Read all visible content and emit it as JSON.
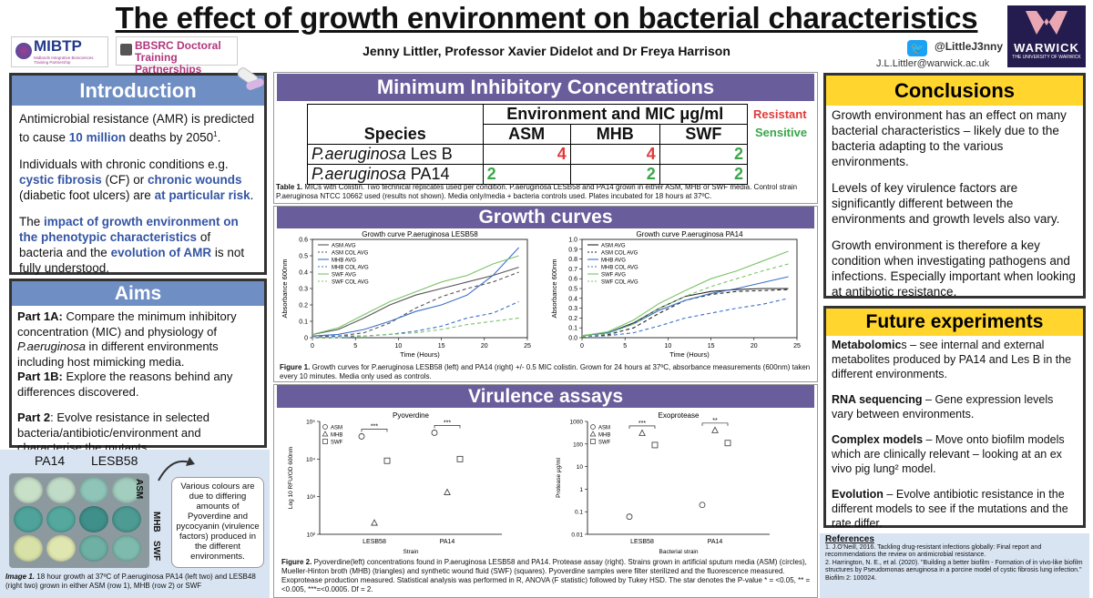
{
  "header": {
    "title": "The effect of growth environment on bacterial characteristics",
    "authors": "Jenny Littler, Professor Xavier Didelot and Dr Freya Harrison",
    "twitter": "@LittleJ3nny",
    "email": "J.L.Littler@warwick.ac.uk",
    "logo_mibtp": "MIBTP",
    "logo_mibtp_sub": "Midlands Integrative Biosciences Training Partnership",
    "logo_bbsrc": "BBSRC Doctoral Training Partnerships",
    "logo_warwick": "WARWICK",
    "logo_warwick_sub": "THE UNIVERSITY OF WARWICK"
  },
  "introduction": {
    "title": "Introduction",
    "p1a": "Antimicrobial resistance (AMR) is predicted to cause ",
    "p1b": "10 million",
    "p1c": " deaths by 2050",
    "p1sup": "1",
    "p1d": ".",
    "p2a": "Individuals with chronic conditions e.g. ",
    "p2b": "cystic fibrosis",
    "p2c": " (CF) or ",
    "p2d": "chronic wounds",
    "p2e": " (diabetic foot ulcers) are ",
    "p2f": "at particular risk",
    "p2g": ".",
    "p3a": "The ",
    "p3b": "impact of growth environment on the phenotypic characteristics",
    "p3c": " of bacteria and the ",
    "p3d": "evolution of AMR",
    "p3e": " is not fully understood."
  },
  "aims": {
    "title": "Aims",
    "p1a_label": "Part 1A:",
    "p1a_text": " Compare the minimum inhibitory concentration (MIC) and physiology of ",
    "p1a_italic": "P.aeruginosa",
    "p1a_rest": " in different environments including host mimicking media.",
    "p1b_label": "Part 1B:",
    "p1b_text": " Explore the reasons behind any differences discovered.",
    "p2_label": "Part 2",
    "p2_text": ": Evolve resistance in selected bacteria/antibiotic/environment and characterise the mutants."
  },
  "plate": {
    "label_pa14": "PA14",
    "label_lesb58": "LESB58",
    "rows": [
      "ASM",
      "MHB",
      "SWF"
    ],
    "note": "Various colours are due to differing amounts of Pyoverdine and pycocyanin (virulence factors) produced in the different environments.",
    "caption_label": "Image 1.",
    "caption": " 18 hour growth at 37ºC of P.aeruginosa PA14 (left two) and LESB48 (right two) grown in either ASM (row 1), MHB (row 2) or SWF",
    "colors": [
      "#c8e0c8",
      "#c0dcc8",
      "#8fc4b8",
      "#a2cdbf",
      "#4fa39a",
      "#55a89e",
      "#3f8f8a",
      "#4d9b93",
      "#d8e2a8",
      "#e0e6b0",
      "#6fb0a4",
      "#7fbaae"
    ]
  },
  "mic": {
    "title": "Minimum Inhibitory Concentrations",
    "header": "Environment and MIC μg/ml",
    "col_species": "Species",
    "cols": [
      "ASM",
      "MHB",
      "SWF"
    ],
    "rows": [
      {
        "species": "P.aeruginosa",
        "strain": " Les B",
        "values": [
          "4",
          "4",
          "2"
        ],
        "colors": [
          "#e23b3b",
          "#e23b3b",
          "#3aa64a"
        ]
      },
      {
        "species": "P.aeruginosa",
        "strain": " PA14",
        "values": [
          "2",
          "2",
          "2"
        ],
        "colors": [
          "#3aa64a",
          "#3aa64a",
          "#3aa64a"
        ]
      }
    ],
    "legend_resistant": "Resistant",
    "legend_sensitive": "Sensitive",
    "caption_label": "Table 1.",
    "caption": " MICs with Colistin. Two technical replicates used per condition. P.aeruginosa LESB58 and PA14 grown in either ASM, MHB or SWF media. Control strain P.aeruginosa NTCC 10662 used (results not shown). Media only/media + bacteria controls used. Plates incubated for 18 hours at 37ºC."
  },
  "growth": {
    "title": "Growth curves",
    "caption_label": "Figure 1.",
    "caption": " Growth curves for P.aeruginosa LESB58 (left) and PA14 (right) +/- 0.5 MIC colistin. Grown for 24 hours at 37ºC, absorbance measurements (600nm) taken every 10 minutes. Media only used as controls."
  },
  "virulence": {
    "title": "Virulence assays",
    "caption_label": "Figure 2.",
    "caption": " Pyoverdine(left) concentrations found in P.aeruginosa LESB58 and PA14. Protease assay (right). Strains grown in artificial sputum media (ASM) (circles), Mueller-Hinton broth (MHB) (triangles) and synthetic wound fluid (SWF) (squares). Pyoverdine samples were filter sterilized and the fluorescence measured. Exoprotease production measured. Statistical analysis was performed in R, ANOVA (F statistic) followed by Tukey HSD. The star denotes the P-value * = <0.05, ** = <0.005, ***=<0.0005. Df = 2."
  },
  "conclusions": {
    "title": "Conclusions",
    "p1": "Growth environment has an effect on many bacterial characteristics – likely due to the bacteria adapting to the various environments.",
    "p2": "Levels of key virulence factors are significantly different between the environments and growth levels also vary.",
    "p3": "Growth environment is therefore a key condition when investigating pathogens and infections. Especially important when looking at antibiotic resistance."
  },
  "future": {
    "title": "Future experiments",
    "items": [
      {
        "label": "Metabolomic",
        "rest": "s – see internal and external metabolites produced by PA14 and Les B in the different environments."
      },
      {
        "label": "RNA sequencing",
        "rest": " – Gene expression levels vary between environments."
      },
      {
        "label": "Complex models",
        "rest": " – Move onto biofilm models which are clinically relevant – looking at an ex vivo pig lung² model."
      },
      {
        "label": "Evolution",
        "rest": " – Evolve antibiotic resistance in the different models to see if the mutations and the rate differ."
      }
    ]
  },
  "references": {
    "title": "References",
    "r1": "1. J.O’Neill, 2016. Tackling drug-resistant infections globally: Final report and recommendations the review on antimicrobial resistance.",
    "r2": "2. Harrington, N. E., et al. (2020). \"Building a better biofilm - Formation of in vivo-like biofilm structures by Pseudomonas aeruginosa in a porcine model of cystic fibrosis lung infection.\" Biofilm 2: 100024."
  },
  "chart_data": [
    {
      "type": "line",
      "title": "Growth curve P.aeruginosa LESB58",
      "xlabel": "Time (Hours)",
      "ylabel": "Absorbance 600nm",
      "xlim": [
        0,
        25
      ],
      "ylim": [
        0,
        0.6
      ],
      "xticks": [
        "0",
        "5",
        "10",
        "15",
        "20",
        "25"
      ],
      "yticks": [
        "0",
        "0.1",
        "0.2",
        "0.3",
        "0.4",
        "0.5",
        "0.6"
      ],
      "x": [
        0,
        3,
        6,
        9,
        12,
        15,
        18,
        21,
        24
      ],
      "series": [
        {
          "name": "ASM AVG",
          "color": "#555555",
          "dash": "",
          "values": [
            0.02,
            0.05,
            0.12,
            0.2,
            0.26,
            0.3,
            0.34,
            0.38,
            0.43
          ]
        },
        {
          "name": "ASM COL AVG",
          "color": "#555555",
          "dash": "4,3",
          "values": [
            0.01,
            0.01,
            0.03,
            0.09,
            0.18,
            0.25,
            0.3,
            0.34,
            0.4
          ]
        },
        {
          "name": "MHB AVG",
          "color": "#3b6fc4",
          "dash": "",
          "values": [
            0.01,
            0.02,
            0.05,
            0.1,
            0.16,
            0.2,
            0.26,
            0.38,
            0.55
          ]
        },
        {
          "name": "MHB COL AVG",
          "color": "#3b6fc4",
          "dash": "4,3",
          "values": [
            0.0,
            0.01,
            0.01,
            0.02,
            0.04,
            0.07,
            0.12,
            0.15,
            0.22
          ]
        },
        {
          "name": "SWF AVG",
          "color": "#7cc36a",
          "dash": "",
          "values": [
            0.02,
            0.06,
            0.14,
            0.22,
            0.28,
            0.34,
            0.38,
            0.45,
            0.5
          ]
        },
        {
          "name": "SWF COL AVG",
          "color": "#7cc36a",
          "dash": "4,3",
          "values": [
            0.0,
            0.0,
            0.01,
            0.02,
            0.03,
            0.05,
            0.08,
            0.1,
            0.12
          ]
        }
      ]
    },
    {
      "type": "line",
      "title": "Growth curve P.aeruginosa PA14",
      "xlabel": "Time (Hours)",
      "ylabel": "Absorbance 600nm",
      "xlim": [
        0,
        25
      ],
      "ylim": [
        0,
        1.0
      ],
      "xticks": [
        "0",
        "5",
        "10",
        "15",
        "20",
        "25"
      ],
      "yticks": [
        "0.0",
        "0.1",
        "0.2",
        "0.3",
        "0.4",
        "0.5",
        "0.6",
        "0.7",
        "0.8",
        "0.9",
        "1.0"
      ],
      "x": [
        0,
        3,
        6,
        9,
        12,
        15,
        18,
        21,
        24
      ],
      "series": [
        {
          "name": "ASM AVG",
          "color": "#222222",
          "dash": "",
          "values": [
            0.02,
            0.05,
            0.15,
            0.3,
            0.42,
            0.47,
            0.49,
            0.5,
            0.5
          ]
        },
        {
          "name": "ASM COL AVG",
          "color": "#222222",
          "dash": "4,3",
          "values": [
            0.01,
            0.03,
            0.1,
            0.25,
            0.38,
            0.44,
            0.47,
            0.48,
            0.49
          ]
        },
        {
          "name": "MHB AVG",
          "color": "#3b6fc4",
          "dash": "",
          "values": [
            0.02,
            0.05,
            0.14,
            0.28,
            0.38,
            0.45,
            0.5,
            0.56,
            0.62
          ]
        },
        {
          "name": "MHB COL AVG",
          "color": "#3b6fc4",
          "dash": "4,3",
          "values": [
            0.01,
            0.02,
            0.05,
            0.12,
            0.2,
            0.25,
            0.3,
            0.34,
            0.4
          ]
        },
        {
          "name": "SWF AVG",
          "color": "#7cc36a",
          "dash": "",
          "values": [
            0.02,
            0.06,
            0.18,
            0.35,
            0.48,
            0.6,
            0.68,
            0.78,
            0.88
          ]
        },
        {
          "name": "SWF COL AVG",
          "color": "#7cc36a",
          "dash": "4,3",
          "values": [
            0.01,
            0.04,
            0.14,
            0.3,
            0.42,
            0.52,
            0.6,
            0.68,
            0.75
          ]
        }
      ]
    },
    {
      "type": "scatter",
      "title": "Pyoverdine",
      "xlabel": "Strain",
      "ylabel": "Log 10 RFU/OD 600nm",
      "yscale": "log",
      "ylim": [
        100,
        100000
      ],
      "yticks": [
        "10²",
        "10³",
        "10⁴",
        "10⁵"
      ],
      "categories": [
        "LESB58",
        "PA14"
      ],
      "legend": [
        "ASM",
        "MHB",
        "SWF"
      ],
      "points": [
        {
          "cat": 0,
          "series": "ASM",
          "value": 40000
        },
        {
          "cat": 0,
          "series": "MHB",
          "value": 200
        },
        {
          "cat": 0,
          "series": "SWF",
          "value": 9000
        },
        {
          "cat": 1,
          "series": "ASM",
          "value": 50000
        },
        {
          "cat": 1,
          "series": "MHB",
          "value": 1300
        },
        {
          "cat": 1,
          "series": "SWF",
          "value": 10000
        }
      ],
      "significance": "***"
    },
    {
      "type": "scatter",
      "title": "Exoprotease",
      "xlabel": "Bacterial strain",
      "ylabel": "Protease μg/ml",
      "yscale": "log",
      "ylim": [
        0.01,
        1000
      ],
      "yticks": [
        "0.01",
        "0.1",
        "1",
        "10",
        "100",
        "1000"
      ],
      "categories": [
        "LESB58",
        "PA14"
      ],
      "legend": [
        "ASM",
        "MHB",
        "SWF"
      ],
      "points": [
        {
          "cat": 0,
          "series": "ASM",
          "value": 0.06
        },
        {
          "cat": 0,
          "series": "MHB",
          "value": 300
        },
        {
          "cat": 0,
          "series": "SWF",
          "value": 90
        },
        {
          "cat": 1,
          "series": "ASM",
          "value": 0.2
        },
        {
          "cat": 1,
          "series": "MHB",
          "value": 400
        },
        {
          "cat": 1,
          "series": "SWF",
          "value": 110
        }
      ],
      "significance": [
        "***",
        "**"
      ]
    }
  ]
}
